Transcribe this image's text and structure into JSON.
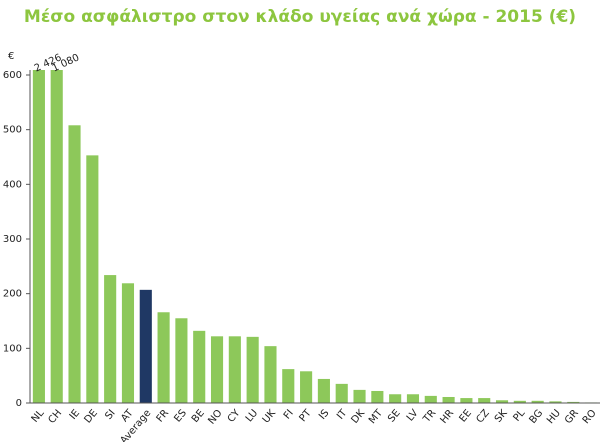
{
  "chart_data": {
    "type": "bar",
    "title": "Μέσο ασφάλιστρο στον κλάδο υγείας ανά χώρα - 2015 (€)",
    "y_unit": "€",
    "categories": [
      "NL",
      "CH",
      "IE",
      "DE",
      "SI",
      "AT",
      "Average",
      "FR",
      "ES",
      "BE",
      "NO",
      "CY",
      "LU",
      "UK",
      "FI",
      "PT",
      "IS",
      "IT",
      "DK",
      "MT",
      "SE",
      "LV",
      "TR",
      "HR",
      "EE",
      "CZ",
      "SK",
      "PL",
      "BG",
      "HU",
      "GR",
      "RO"
    ],
    "values": [
      2426,
      1080,
      508,
      453,
      234,
      219,
      207,
      166,
      155,
      132,
      122,
      122,
      121,
      104,
      62,
      58,
      44,
      35,
      24,
      22,
      16,
      16,
      13,
      11,
      9,
      9,
      5,
      4,
      4,
      3,
      2,
      1
    ],
    "value_labels": [
      "2 426",
      "1 080",
      null,
      null,
      null,
      null,
      null,
      null,
      null,
      null,
      null,
      null,
      null,
      null,
      null,
      null,
      null,
      null,
      null,
      null,
      null,
      null,
      null,
      null,
      null,
      null,
      null,
      null,
      null,
      null,
      null,
      null
    ],
    "colors": [
      "#8dc85a",
      "#8dc85a",
      "#8dc85a",
      "#8dc85a",
      "#8dc85a",
      "#8dc85a",
      "#1f3864",
      "#8dc85a",
      "#8dc85a",
      "#8dc85a",
      "#8dc85a",
      "#8dc85a",
      "#8dc85a",
      "#8dc85a",
      "#8dc85a",
      "#8dc85a",
      "#8dc85a",
      "#8dc85a",
      "#8dc85a",
      "#8dc85a",
      "#8dc85a",
      "#8dc85a",
      "#8dc85a",
      "#8dc85a",
      "#8dc85a",
      "#8dc85a",
      "#8dc85a",
      "#8dc85a",
      "#8dc85a",
      "#8dc85a",
      "#8dc85a",
      "#8dc85a"
    ],
    "ylim": [
      0,
      600
    ],
    "yticks": [
      0,
      100,
      200,
      300,
      400,
      500,
      600
    ],
    "grid": false
  }
}
